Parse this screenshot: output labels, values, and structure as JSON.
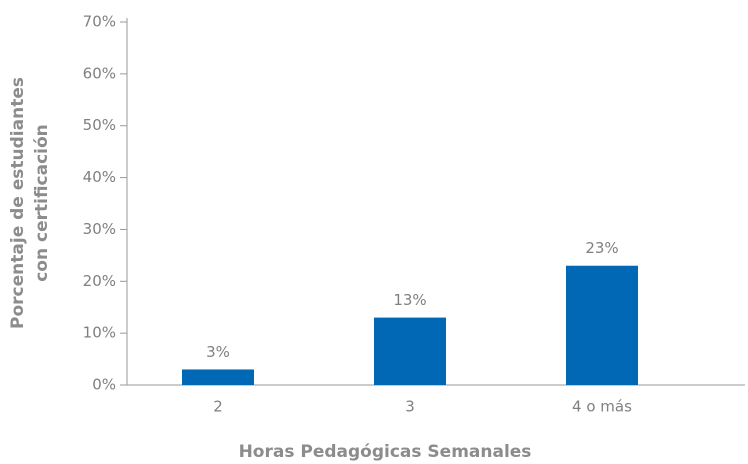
{
  "chart_data": {
    "type": "bar",
    "x_label": "Horas Pedagógicas Semanales",
    "y_label": [
      "Porcentaje de estudiantes",
      "con certificación"
    ],
    "categories": [
      "2",
      "3",
      "4 o más"
    ],
    "values": [
      3,
      13,
      23
    ],
    "value_labels": [
      "3%",
      "13%",
      "23%"
    ],
    "color": "#0068b4",
    "ylim": [
      0,
      70
    ],
    "yticks": [
      {
        "value": 0,
        "label": "0%"
      },
      {
        "value": 10,
        "label": "10%"
      },
      {
        "value": 20,
        "label": "20%"
      },
      {
        "value": 30,
        "label": "30%"
      },
      {
        "value": 40,
        "label": "40%"
      },
      {
        "value": 50,
        "label": "50%"
      },
      {
        "value": 60,
        "label": "60%"
      },
      {
        "value": 70,
        "label": "70%"
      }
    ],
    "grid": false
  }
}
